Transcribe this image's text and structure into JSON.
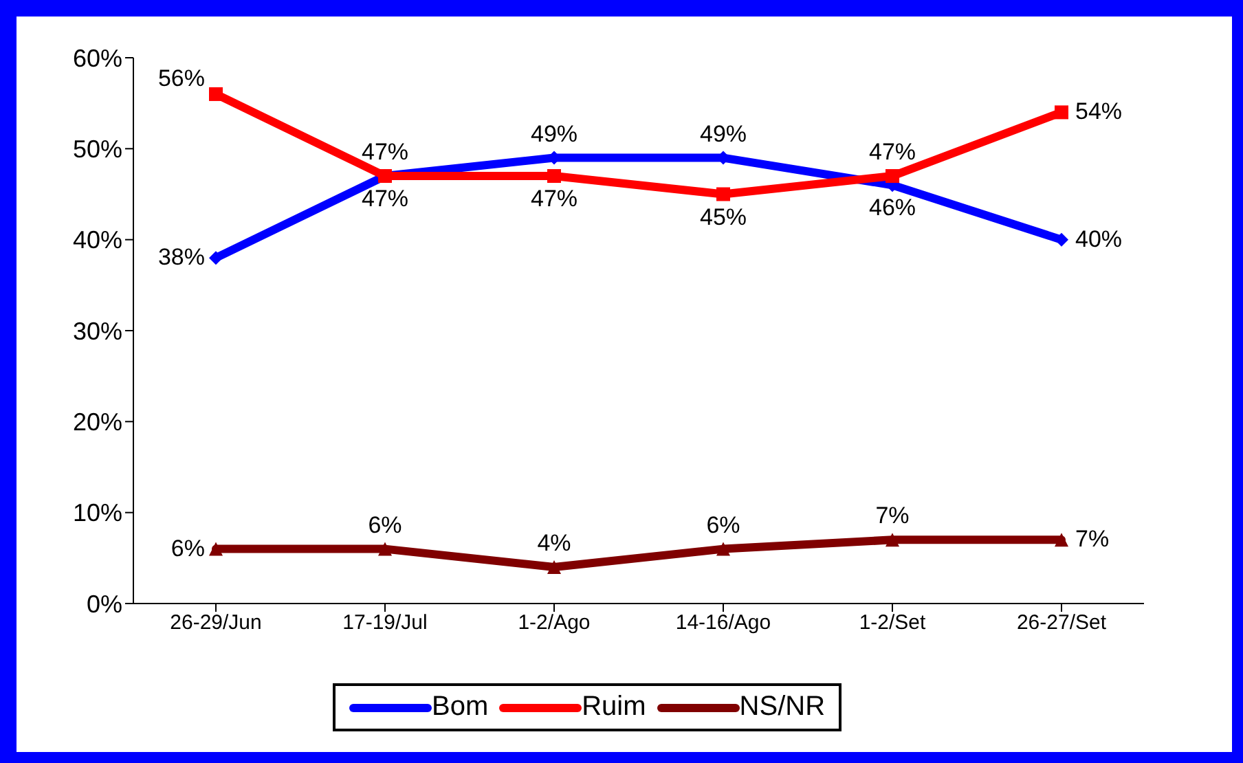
{
  "chart_data": {
    "type": "line",
    "categories": [
      "26-29/Jun",
      "17-19/Jul",
      "1-2/Ago",
      "14-16/Ago",
      "1-2/Set",
      "26-27/Set"
    ],
    "series": [
      {
        "name": "Bom",
        "color": "#0000ff",
        "marker": "diamond",
        "values": [
          38,
          47,
          49,
          49,
          46,
          40
        ],
        "value_labels": [
          "38%",
          "47%",
          "49%",
          "49%",
          "46%",
          "40%"
        ]
      },
      {
        "name": "Ruim",
        "color": "#ff0000",
        "marker": "square",
        "values": [
          56,
          47,
          47,
          45,
          47,
          54
        ],
        "value_labels": [
          "56%",
          "47%",
          "47%",
          "45%",
          "47%",
          "54%"
        ]
      },
      {
        "name": "NS/NR",
        "color": "#800000",
        "marker": "triangle",
        "values": [
          6,
          6,
          4,
          6,
          7,
          7
        ],
        "value_labels": [
          "6%",
          "6%",
          "4%",
          "6%",
          "7%",
          "7%"
        ]
      }
    ],
    "ylim": [
      0,
      60
    ],
    "yticks": [
      {
        "value": 0,
        "label": "0%"
      },
      {
        "value": 10,
        "label": "10%"
      },
      {
        "value": 20,
        "label": "20%"
      },
      {
        "value": 30,
        "label": "30%"
      },
      {
        "value": 40,
        "label": "40%"
      },
      {
        "value": 50,
        "label": "50%"
      },
      {
        "value": 60,
        "label": "60%"
      }
    ],
    "grid": false,
    "legend": "bottom",
    "line_style": "solid"
  }
}
